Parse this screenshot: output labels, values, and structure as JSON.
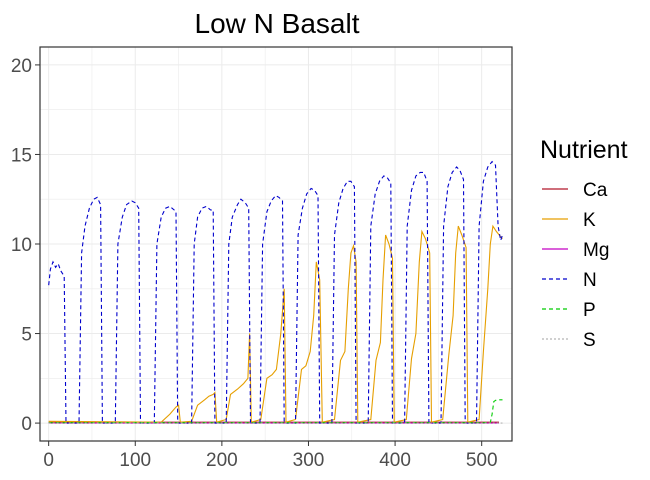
{
  "chart_data": {
    "type": "line",
    "title": "Low N Basalt",
    "xlabel": "",
    "ylabel": "",
    "xlim": [
      -10,
      535
    ],
    "ylim": [
      -1,
      21
    ],
    "x_ticks": [
      0,
      100,
      200,
      300,
      400,
      500
    ],
    "y_ticks": [
      0,
      5,
      10,
      15,
      20
    ],
    "grid": true,
    "legend_title": "Nutrient",
    "legend_position": "right",
    "series": [
      {
        "name": "Ca",
        "color": "#b2182b",
        "dash": "solid",
        "points": [
          [
            0,
            0.05
          ],
          [
            520,
            0.05
          ]
        ]
      },
      {
        "name": "K",
        "color": "#e69f00",
        "dash": "solid",
        "points": [
          [
            0,
            0.1
          ],
          [
            130,
            0.05
          ],
          [
            140,
            0.5
          ],
          [
            147,
            0.9
          ],
          [
            150,
            1.0
          ],
          [
            152,
            0.05
          ],
          [
            165,
            0.1
          ],
          [
            172,
            1.0
          ],
          [
            180,
            1.3
          ],
          [
            185,
            1.5
          ],
          [
            190,
            1.6
          ],
          [
            192,
            1.7
          ],
          [
            194,
            0.05
          ],
          [
            205,
            0.2
          ],
          [
            210,
            1.6
          ],
          [
            218,
            1.9
          ],
          [
            225,
            2.2
          ],
          [
            230,
            2.5
          ],
          [
            232,
            5.0
          ],
          [
            234,
            0.05
          ],
          [
            245,
            0.2
          ],
          [
            252,
            2.5
          ],
          [
            258,
            2.7
          ],
          [
            263,
            3.0
          ],
          [
            268,
            5.0
          ],
          [
            272,
            7.5
          ],
          [
            274,
            0.05
          ],
          [
            285,
            0.2
          ],
          [
            292,
            3.0
          ],
          [
            297,
            3.2
          ],
          [
            302,
            4.0
          ],
          [
            306,
            6.0
          ],
          [
            309,
            9.0
          ],
          [
            313,
            8.0
          ],
          [
            316,
            0.05
          ],
          [
            330,
            0.2
          ],
          [
            337,
            3.5
          ],
          [
            342,
            4.0
          ],
          [
            346,
            7.5
          ],
          [
            349,
            9.5
          ],
          [
            352,
            9.9
          ],
          [
            355,
            9.0
          ],
          [
            357,
            0.05
          ],
          [
            372,
            0.2
          ],
          [
            378,
            3.5
          ],
          [
            383,
            4.5
          ],
          [
            386,
            8.0
          ],
          [
            389,
            10.5
          ],
          [
            393,
            10.0
          ],
          [
            397,
            9.2
          ],
          [
            399,
            0.05
          ],
          [
            413,
            0.2
          ],
          [
            419,
            3.6
          ],
          [
            424,
            5.0
          ],
          [
            428,
            9.0
          ],
          [
            431,
            10.7
          ],
          [
            435,
            10.3
          ],
          [
            440,
            9.5
          ],
          [
            442,
            0.05
          ],
          [
            455,
            0.2
          ],
          [
            462,
            3.8
          ],
          [
            467,
            6.0
          ],
          [
            470,
            9.5
          ],
          [
            473,
            11.0
          ],
          [
            477,
            10.5
          ],
          [
            482,
            9.8
          ],
          [
            484,
            0.05
          ],
          [
            497,
            0.2
          ],
          [
            502,
            4.0
          ],
          [
            507,
            7.5
          ],
          [
            510,
            10.0
          ],
          [
            513,
            11.0
          ],
          [
            517,
            10.7
          ],
          [
            522,
            10.4
          ],
          [
            524,
            10.3
          ]
        ]
      },
      {
        "name": "Mg",
        "color": "#c300c3",
        "dash": "solid",
        "points": [
          [
            0,
            0.0
          ],
          [
            520,
            0.0
          ]
        ]
      },
      {
        "name": "N",
        "color": "#0000cc",
        "dash": "dashed",
        "points": [
          [
            0,
            7.7
          ],
          [
            2,
            8.6
          ],
          [
            5,
            9.0
          ],
          [
            8,
            8.7
          ],
          [
            11,
            8.9
          ],
          [
            14,
            8.5
          ],
          [
            18,
            8.2
          ],
          [
            20,
            0.0
          ],
          [
            35,
            0.0
          ],
          [
            38,
            9.5
          ],
          [
            42,
            11.0
          ],
          [
            47,
            12.0
          ],
          [
            52,
            12.5
          ],
          [
            56,
            12.6
          ],
          [
            60,
            12.2
          ],
          [
            62,
            0.0
          ],
          [
            77,
            0.0
          ],
          [
            80,
            10.0
          ],
          [
            85,
            11.5
          ],
          [
            90,
            12.2
          ],
          [
            96,
            12.4
          ],
          [
            100,
            12.3
          ],
          [
            104,
            12.0
          ],
          [
            106,
            0.0
          ],
          [
            122,
            0.0
          ],
          [
            125,
            10.0
          ],
          [
            130,
            11.5
          ],
          [
            135,
            12.0
          ],
          [
            140,
            12.1
          ],
          [
            145,
            11.9
          ],
          [
            147,
            11.8
          ],
          [
            149,
            0.0
          ],
          [
            165,
            0.0
          ],
          [
            168,
            10.0
          ],
          [
            172,
            11.5
          ],
          [
            177,
            12.0
          ],
          [
            182,
            12.1
          ],
          [
            187,
            11.9
          ],
          [
            190,
            11.9
          ],
          [
            192,
            0.0
          ],
          [
            205,
            0.0
          ],
          [
            208,
            10.0
          ],
          [
            212,
            11.5
          ],
          [
            218,
            12.2
          ],
          [
            222,
            12.5
          ],
          [
            227,
            12.3
          ],
          [
            231,
            12.0
          ],
          [
            233,
            0.0
          ],
          [
            244,
            0.0
          ],
          [
            247,
            10.0
          ],
          [
            252,
            11.8
          ],
          [
            257,
            12.4
          ],
          [
            262,
            12.7
          ],
          [
            266,
            12.6
          ],
          [
            270,
            12.4
          ],
          [
            272,
            0.0
          ],
          [
            285,
            0.0
          ],
          [
            288,
            10.5
          ],
          [
            293,
            12.0
          ],
          [
            298,
            12.8
          ],
          [
            303,
            13.1
          ],
          [
            307,
            13.0
          ],
          [
            311,
            12.7
          ],
          [
            313,
            0.0
          ],
          [
            327,
            0.0
          ],
          [
            330,
            10.5
          ],
          [
            335,
            12.3
          ],
          [
            340,
            13.1
          ],
          [
            345,
            13.5
          ],
          [
            349,
            13.5
          ],
          [
            353,
            13.2
          ],
          [
            355,
            0.0
          ],
          [
            369,
            0.0
          ],
          [
            372,
            11.0
          ],
          [
            377,
            12.8
          ],
          [
            382,
            13.5
          ],
          [
            387,
            13.8
          ],
          [
            391,
            13.7
          ],
          [
            395,
            13.4
          ],
          [
            397,
            0.0
          ],
          [
            411,
            0.0
          ],
          [
            414,
            11.0
          ],
          [
            419,
            13.0
          ],
          [
            424,
            13.8
          ],
          [
            429,
            14.0
          ],
          [
            433,
            14.0
          ],
          [
            437,
            13.5
          ],
          [
            439,
            0.0
          ],
          [
            453,
            0.0
          ],
          [
            456,
            11.0
          ],
          [
            461,
            13.2
          ],
          [
            466,
            14.0
          ],
          [
            471,
            14.3
          ],
          [
            475,
            14.1
          ],
          [
            479,
            13.6
          ],
          [
            481,
            0.0
          ],
          [
            494,
            0.0
          ],
          [
            497,
            11.0
          ],
          [
            502,
            13.5
          ],
          [
            507,
            14.3
          ],
          [
            512,
            14.6
          ],
          [
            516,
            14.4
          ],
          [
            519,
            11.0
          ],
          [
            522,
            10.2
          ],
          [
            524,
            10.5
          ]
        ]
      },
      {
        "name": "P",
        "color": "#00cc00",
        "dash": "dashed",
        "points": [
          [
            0,
            0.02
          ],
          [
            510,
            0.02
          ],
          [
            512,
            0.5
          ],
          [
            514,
            1.2
          ],
          [
            517,
            1.3
          ],
          [
            524,
            1.3
          ]
        ]
      },
      {
        "name": "S",
        "color": "#b3b3b3",
        "dash": "dotted",
        "points": [
          [
            0,
            0.0
          ],
          [
            524,
            0.0
          ]
        ]
      }
    ]
  }
}
